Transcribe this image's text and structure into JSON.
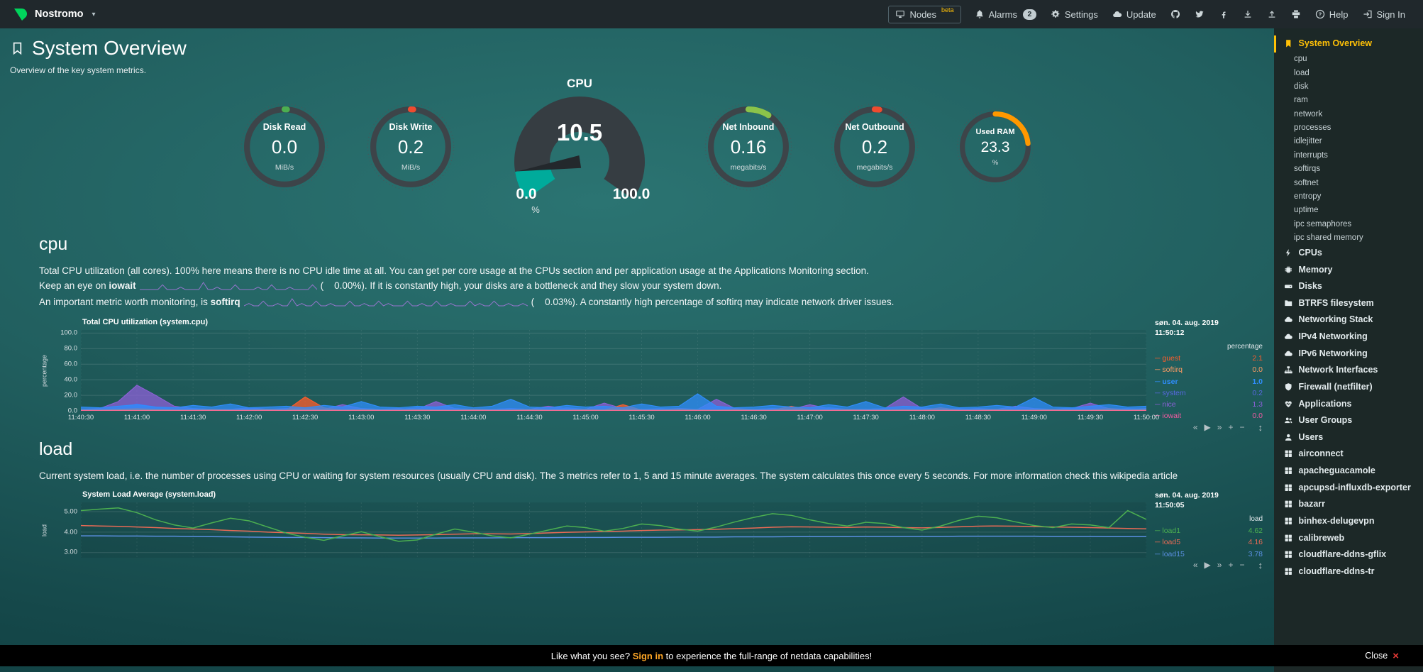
{
  "colors": {
    "accent": "#ffc107",
    "brand_green": "#00d45c",
    "signin_link": "#ffa726",
    "close_x": "#e53935",
    "gauge_teal": "#00ab9b"
  },
  "topbar": {
    "brand": "Nostromo",
    "items": [
      {
        "id": "nodes",
        "label": "Nodes",
        "icon": "desktop-icon",
        "badge": "beta",
        "badge_type": "beta",
        "boxed": true
      },
      {
        "id": "alarms",
        "label": "Alarms",
        "icon": "bell-icon",
        "badge": "2",
        "badge_type": "count"
      },
      {
        "id": "settings",
        "label": "Settings",
        "icon": "gear-icon"
      },
      {
        "id": "update",
        "label": "Update",
        "icon": "cloud-icon"
      },
      {
        "id": "github",
        "icon": "github-icon"
      },
      {
        "id": "twitter",
        "icon": "twitter-icon"
      },
      {
        "id": "facebook",
        "icon": "facebook-icon"
      },
      {
        "id": "export",
        "icon": "download-icon"
      },
      {
        "id": "import",
        "icon": "upload-icon"
      },
      {
        "id": "print",
        "icon": "print-icon"
      },
      {
        "id": "help",
        "label": "Help",
        "icon": "help-icon"
      },
      {
        "id": "signin",
        "label": "Sign In",
        "icon": "signin-icon"
      }
    ]
  },
  "page": {
    "title": "System Overview",
    "subtitle": "Overview of the key system metrics."
  },
  "gauges": {
    "cpu": {
      "title": "CPU",
      "value": "10.5",
      "min": "0.0",
      "max": "100.0",
      "unit": "%",
      "percent": 10.5,
      "color": "#00ab9b"
    },
    "easy": [
      {
        "label": "Disk Read",
        "value": "0.0",
        "unit": "MiB/s",
        "percent": 1.1,
        "color": "#4caf50",
        "size": 130
      },
      {
        "label": "Disk Write",
        "value": "0.2",
        "unit": "MiB/s",
        "percent": 1.1,
        "color": "#ef4b2f",
        "size": 130
      },
      {
        "label": "Net Inbound",
        "value": "0.16",
        "unit": "megabits/s",
        "percent": 9,
        "color": "#8bc34a",
        "size": 130
      },
      {
        "label": "Net Outbound",
        "value": "0.2",
        "unit": "megabits/s",
        "percent": 2,
        "color": "#ef4b2f",
        "size": 130
      },
      {
        "label": "Used RAM",
        "value": "23.3",
        "unit": "%",
        "percent": 23.3,
        "color": "#ff9800",
        "size": 114
      }
    ]
  },
  "sections": {
    "cpu": {
      "heading": "cpu",
      "line1": "Total CPU utilization (all cores). 100% here means there is no CPU idle time at all. You can get per core usage at the CPUs section and per application usage at the Applications Monitoring section.",
      "line2_pre": "Keep an eye on ",
      "line2_term": "iowait",
      "line2_value": "(    0.00%).",
      "line2_post": " If it is constantly high, your disks are a bottleneck and they slow your system down.",
      "line3_pre": "An important metric worth monitoring, is ",
      "line3_term": "softirq",
      "line3_value": "(    0.03%).",
      "line3_post": " A constantly high percentage of softirq may indicate network driver issues.",
      "spark_iowait": [
        0,
        0,
        0,
        0,
        0,
        2,
        0,
        0,
        0,
        1,
        0,
        0,
        0,
        0,
        3,
        0,
        0,
        1,
        0,
        0,
        0,
        2,
        0,
        0,
        0,
        0,
        1,
        0,
        0,
        2,
        0,
        0,
        0,
        1,
        0,
        0,
        0,
        0,
        2,
        0
      ],
      "spark_softirq": [
        0,
        1,
        0,
        0,
        2,
        0,
        0,
        1,
        0,
        0,
        3,
        0,
        1,
        0,
        0,
        2,
        0,
        0,
        1,
        0,
        0,
        0,
        2,
        0,
        0,
        1,
        0,
        0,
        2,
        0,
        1,
        0,
        0,
        0,
        2,
        0,
        0,
        1,
        0,
        0,
        2,
        0,
        0,
        1,
        0,
        0,
        0,
        2,
        0,
        1,
        0,
        0,
        2,
        0,
        0,
        1,
        0,
        0,
        1,
        0
      ]
    },
    "load": {
      "heading": "load",
      "line1": "Current system load, i.e. the number of processes using CPU or waiting for system resources (usually CPU and disk). The 3 metrics refer to 1, 5 and 15 minute averages. The system calculates this once every 5 seconds. For more information check this wikipedia article"
    }
  },
  "chart_toolbar": {
    "skip_back": "«",
    "play": "▶",
    "skip_forward": "»",
    "zoom_in": "+",
    "zoom_out": "−",
    "resize": "↕"
  },
  "chart_data": [
    {
      "id": "cpu",
      "type": "area",
      "title": "Total CPU utilization (system.cpu)",
      "date": "søn. 04. aug. 2019",
      "time": "11:50:12",
      "unit": "percentage",
      "ylabel": "percentage",
      "ylim": [
        0,
        104
      ],
      "height": 114,
      "yticks": [
        {
          "label": "100.0",
          "v": 100
        },
        {
          "label": "80.0",
          "v": 80
        },
        {
          "label": "60.0",
          "v": 60
        },
        {
          "label": "40.0",
          "v": 40
        },
        {
          "label": "20.0",
          "v": 20
        },
        {
          "label": "0.0",
          "v": 0
        }
      ],
      "xticks": [
        "11:40:30",
        "11:41:00",
        "11:41:30",
        "11:42:00",
        "11:42:30",
        "11:43:00",
        "11:43:30",
        "11:44:00",
        "11:44:30",
        "11:45:00",
        "11:45:30",
        "11:46:00",
        "11:46:30",
        "11:47:00",
        "11:47:30",
        "11:48:00",
        "11:48:30",
        "11:49:00",
        "11:49:30",
        "11:50:00"
      ],
      "draw_order": [
        4,
        3,
        0,
        2,
        1,
        5
      ],
      "series": [
        {
          "name": "guest",
          "legend_value": "2.1",
          "color": "#ff5d2b",
          "style": "area",
          "points": [
            1,
            1,
            2,
            3,
            2,
            1,
            1,
            2,
            1,
            1,
            2,
            1,
            18,
            4,
            1,
            2,
            1,
            1,
            2,
            1,
            1,
            2,
            1,
            1,
            2,
            1,
            1,
            2,
            1,
            8,
            1,
            1,
            2,
            1,
            1,
            2,
            1,
            1,
            6,
            1,
            1,
            2,
            1,
            1,
            2,
            1,
            4,
            1,
            1,
            2,
            1,
            1,
            2,
            1,
            1,
            3,
            1,
            2
          ]
        },
        {
          "name": "softirq",
          "legend_value": "0.0",
          "color": "#ff9b63",
          "style": "line",
          "points": [
            0.5,
            0.5,
            0.5,
            0.5,
            0.5,
            0.5,
            0.5,
            0.5,
            0.5,
            0.5,
            0.5,
            0.5,
            0.5,
            0.5,
            0.5,
            0.5,
            0.5,
            0.5,
            0.5,
            0.5,
            0.5,
            0.5,
            0.5,
            0.5,
            0.5,
            0.5,
            0.5,
            0.5,
            0.5,
            0.5,
            0.5,
            0.5,
            0.5,
            0.5,
            0.5,
            0.5,
            0.5,
            0.5,
            0.5,
            0.5,
            0.5,
            0.5,
            0.5,
            0.5,
            0.5,
            0.5,
            0.5,
            0.5,
            0.5,
            0.5,
            0.5,
            0.5,
            0.5,
            0.5,
            0.5,
            0.5,
            0.5,
            0.5
          ]
        },
        {
          "name": "user",
          "legend_value": "1.0",
          "color": "#2f8dfb",
          "style": "area",
          "bold": true,
          "points": [
            5,
            4,
            6,
            8,
            5,
            4,
            7,
            5,
            9,
            4,
            5,
            6,
            4,
            7,
            5,
            12,
            5,
            4,
            6,
            5,
            8,
            4,
            6,
            15,
            5,
            4,
            7,
            5,
            6,
            4,
            9,
            5,
            6,
            22,
            6,
            4,
            5,
            7,
            5,
            4,
            8,
            5,
            12,
            4,
            6,
            5,
            9,
            4,
            5,
            7,
            5,
            17,
            5,
            4,
            6,
            8,
            5,
            6
          ]
        },
        {
          "name": "system",
          "legend_value": "0.2",
          "color": "#5868e0",
          "style": "area",
          "points": [
            2,
            2,
            3,
            9,
            5,
            2,
            3,
            2,
            2,
            3,
            2,
            2,
            4,
            2,
            2,
            3,
            2,
            2,
            4,
            2,
            3,
            2,
            2,
            3,
            2,
            2,
            4,
            2,
            2,
            3,
            2,
            3,
            2,
            2,
            5,
            2,
            2,
            3,
            2,
            2,
            4,
            2,
            2,
            3,
            2,
            4,
            2,
            3,
            2,
            2,
            3,
            2,
            2,
            4,
            2,
            2,
            3,
            2
          ]
        },
        {
          "name": "nice",
          "legend_value": "1.3",
          "color": "#8d60d8",
          "style": "area",
          "points": [
            2,
            3,
            12,
            33,
            20,
            6,
            3,
            2,
            2,
            4,
            2,
            3,
            2,
            2,
            8,
            3,
            2,
            3,
            2,
            12,
            3,
            2,
            2,
            3,
            2,
            6,
            3,
            2,
            10,
            3,
            2,
            2,
            3,
            2,
            15,
            3,
            2,
            3,
            2,
            8,
            3,
            2,
            2,
            3,
            18,
            3,
            2,
            2,
            3,
            2,
            6,
            3,
            2,
            3,
            10,
            3,
            2,
            3
          ]
        },
        {
          "name": "iowait",
          "legend_value": "0.0",
          "color": "#ef5aa0",
          "style": "line",
          "points": [
            0,
            0,
            0,
            0,
            0,
            0,
            0,
            0,
            0,
            0,
            0,
            0,
            0,
            0,
            0,
            0,
            0,
            0,
            0,
            0,
            0,
            0,
            0,
            0,
            0,
            0,
            0,
            0,
            0,
            0,
            0,
            0,
            0,
            0,
            0,
            0,
            0,
            0,
            0,
            0,
            0,
            0,
            0,
            0,
            0,
            0,
            0,
            0,
            0,
            0,
            0,
            0,
            0,
            0,
            0,
            0,
            0,
            0
          ]
        }
      ]
    },
    {
      "id": "load",
      "type": "line",
      "title": "System Load Average (system.load)",
      "date": "søn. 04. aug. 2019",
      "time": "11:50:05",
      "unit": "load",
      "ylabel": "load",
      "ylim": [
        2.75,
        5.45
      ],
      "height": 78,
      "xgrid": 20,
      "yticks": [
        {
          "label": "5.00",
          "v": 5
        },
        {
          "label": "4.00",
          "v": 4
        },
        {
          "label": "3.00",
          "v": 3
        }
      ],
      "xticks": [],
      "draw_order": [
        2,
        1,
        0
      ],
      "series": [
        {
          "name": "load1",
          "legend_value": "4.62",
          "color": "#4caf50",
          "style": "line",
          "points": [
            5.05,
            5.12,
            5.18,
            4.95,
            4.6,
            4.35,
            4.2,
            4.45,
            4.68,
            4.55,
            4.25,
            3.95,
            3.75,
            3.6,
            3.82,
            4.02,
            3.78,
            3.55,
            3.62,
            3.9,
            4.15,
            4.0,
            3.82,
            3.72,
            3.9,
            4.1,
            4.3,
            4.22,
            4.05,
            4.18,
            4.4,
            4.32,
            4.15,
            4.05,
            4.25,
            4.5,
            4.72,
            4.9,
            4.82,
            4.6,
            4.42,
            4.3,
            4.48,
            4.42,
            4.22,
            4.1,
            4.3,
            4.58,
            4.78,
            4.7,
            4.5,
            4.32,
            4.22,
            4.4,
            4.35,
            4.22,
            5.05,
            4.62
          ]
        },
        {
          "name": "load5",
          "legend_value": "4.16",
          "color": "#e96a55",
          "style": "line",
          "points": [
            4.32,
            4.3,
            4.28,
            4.25,
            4.22,
            4.18,
            4.15,
            4.12,
            4.08,
            4.05,
            4.0,
            3.97,
            3.94,
            3.9,
            3.88,
            3.87,
            3.86,
            3.85,
            3.86,
            3.88,
            3.9,
            3.92,
            3.92,
            3.91,
            3.93,
            3.96,
            3.99,
            4.01,
            4.03,
            4.05,
            4.08,
            4.1,
            4.11,
            4.12,
            4.14,
            4.17,
            4.2,
            4.24,
            4.26,
            4.25,
            4.24,
            4.23,
            4.25,
            4.24,
            4.22,
            4.21,
            4.23,
            4.26,
            4.29,
            4.3,
            4.29,
            4.27,
            4.25,
            4.24,
            4.22,
            4.2,
            4.18,
            4.16
          ]
        },
        {
          "name": "load15",
          "legend_value": "3.78",
          "color": "#5a8fe0",
          "style": "line",
          "points": [
            3.82,
            3.82,
            3.81,
            3.81,
            3.8,
            3.8,
            3.79,
            3.78,
            3.77,
            3.76,
            3.75,
            3.74,
            3.74,
            3.73,
            3.72,
            3.72,
            3.71,
            3.71,
            3.71,
            3.71,
            3.72,
            3.72,
            3.72,
            3.73,
            3.73,
            3.73,
            3.74,
            3.74,
            3.74,
            3.75,
            3.75,
            3.75,
            3.76,
            3.76,
            3.76,
            3.77,
            3.77,
            3.77,
            3.78,
            3.78,
            3.78,
            3.78,
            3.79,
            3.79,
            3.79,
            3.79,
            3.79,
            3.8,
            3.8,
            3.8,
            3.8,
            3.8,
            3.79,
            3.79,
            3.79,
            3.78,
            3.78,
            3.78
          ]
        }
      ]
    }
  ],
  "sidebar": {
    "items": [
      {
        "label": "System Overview",
        "icon": "bookmark-icon",
        "active": true
      },
      {
        "label": "cpu",
        "sub": true
      },
      {
        "label": "load",
        "sub": true
      },
      {
        "label": "disk",
        "sub": true
      },
      {
        "label": "ram",
        "sub": true
      },
      {
        "label": "network",
        "sub": true
      },
      {
        "label": "processes",
        "sub": true
      },
      {
        "label": "idlejitter",
        "sub": true
      },
      {
        "label": "interrupts",
        "sub": true
      },
      {
        "label": "softirqs",
        "sub": true
      },
      {
        "label": "softnet",
        "sub": true
      },
      {
        "label": "entropy",
        "sub": true
      },
      {
        "label": "uptime",
        "sub": true
      },
      {
        "label": "ipc semaphores",
        "sub": true
      },
      {
        "label": "ipc shared memory",
        "sub": true
      },
      {
        "label": "CPUs",
        "icon": "bolt-icon"
      },
      {
        "label": "Memory",
        "icon": "chip-icon"
      },
      {
        "label": "Disks",
        "icon": "hdd-icon"
      },
      {
        "label": "BTRFS filesystem",
        "icon": "folder-icon"
      },
      {
        "label": "Networking Stack",
        "icon": "cloud-icon"
      },
      {
        "label": "IPv4 Networking",
        "icon": "cloud-icon"
      },
      {
        "label": "IPv6 Networking",
        "icon": "cloud-icon"
      },
      {
        "label": "Network Interfaces",
        "icon": "sitemap-icon"
      },
      {
        "label": "Firewall (netfilter)",
        "icon": "shield-icon"
      },
      {
        "label": "Applications",
        "icon": "heartbeat-icon"
      },
      {
        "label": "User Groups",
        "icon": "users-icon"
      },
      {
        "label": "Users",
        "icon": "user-icon"
      },
      {
        "label": "airconnect",
        "icon": "grid-icon"
      },
      {
        "label": "apacheguacamole",
        "icon": "grid-icon"
      },
      {
        "label": "apcupsd-influxdb-exporter",
        "icon": "grid-icon"
      },
      {
        "label": "bazarr",
        "icon": "grid-icon"
      },
      {
        "label": "binhex-delugevpn",
        "icon": "grid-icon"
      },
      {
        "label": "calibreweb",
        "icon": "grid-icon"
      },
      {
        "label": "cloudflare-ddns-gflix",
        "icon": "grid-icon"
      },
      {
        "label": "cloudflare-ddns-tr",
        "icon": "grid-icon"
      }
    ]
  },
  "footer": {
    "prefix": "Like what you see? ",
    "signin": "Sign in",
    "suffix": " to experience the full-range of netdata capabilities!",
    "close_label": "Close",
    "close_icon": "×"
  }
}
